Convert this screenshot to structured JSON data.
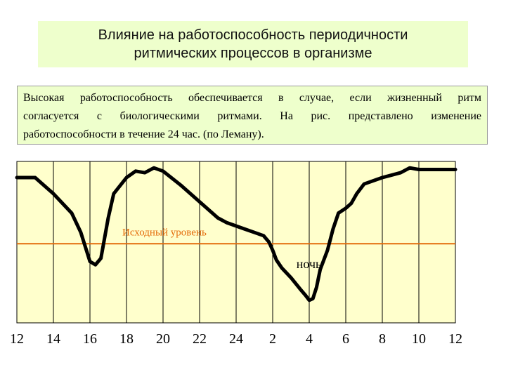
{
  "title": {
    "line1": "Влияние на работоспособность периодичности",
    "line2": "ритмических процессов в организме"
  },
  "description": {
    "line1": "Высокая работоспособность обеспечивается в случае, если жизненный ритм",
    "line2": "согласуется с биологическими ритмами. На рис. представлено изменение",
    "line3": "работоспособности в течение 24 час. (по Леману)."
  },
  "colors": {
    "panel_bg": "#eeffcc",
    "plot_bg": "#ffffcc",
    "baseline": "#e46c0a",
    "curve": "#000000",
    "grid": "#000000"
  },
  "chart_data": {
    "type": "line",
    "x_ticks": [
      "12",
      "14",
      "16",
      "18",
      "20",
      "22",
      "24",
      "2",
      "4",
      "6",
      "8",
      "10",
      "12"
    ],
    "xlim": [
      0,
      24
    ],
    "ylim": [
      0,
      10
    ],
    "grid": true,
    "baseline": {
      "label": "Исходный уровень",
      "y": 4.9
    },
    "annotation": {
      "text": "ночь",
      "x": 15.3,
      "y": 3.4
    },
    "series": [
      {
        "x": [
          0,
          1,
          2,
          3,
          3.5,
          4,
          4.3,
          4.6,
          5,
          5.3,
          6,
          6.5,
          7,
          7.5,
          8,
          9,
          10,
          11,
          11.5,
          12,
          12.5,
          13,
          13.5,
          13.8,
          14,
          14.2,
          14.5,
          15,
          15.5,
          15.8,
          16,
          16.2,
          16.4,
          16.6,
          17,
          17.3,
          17.6,
          18,
          18.3,
          18.6,
          19,
          20,
          21,
          21.5,
          22,
          24
        ],
        "y": [
          9.0,
          9.0,
          8.0,
          6.8,
          5.6,
          3.8,
          3.6,
          4.0,
          6.5,
          8.0,
          9.0,
          9.4,
          9.3,
          9.6,
          9.4,
          8.5,
          7.5,
          6.5,
          6.2,
          6.0,
          5.8,
          5.6,
          5.4,
          5.0,
          4.5,
          3.9,
          3.4,
          2.8,
          2.1,
          1.7,
          1.4,
          1.5,
          2.2,
          3.3,
          4.5,
          5.8,
          6.8,
          7.1,
          7.4,
          8.0,
          8.6,
          9.0,
          9.3,
          9.6,
          9.5,
          9.5
        ]
      }
    ]
  }
}
